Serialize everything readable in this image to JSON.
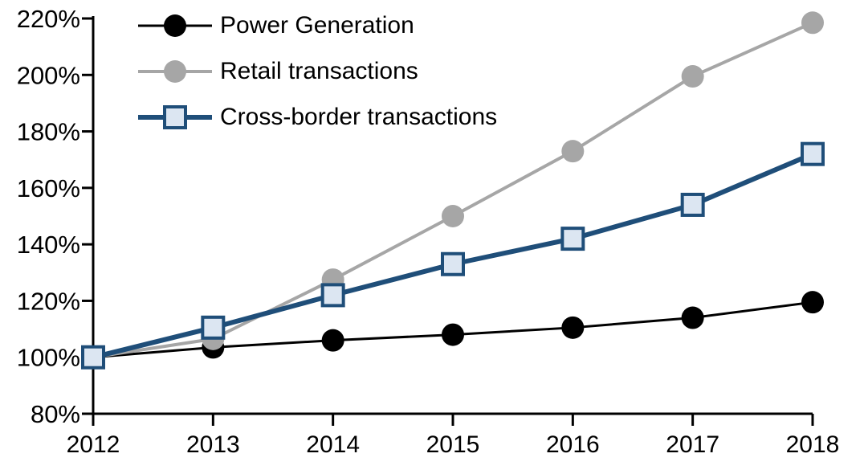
{
  "chart_data": {
    "type": "line",
    "title": "",
    "xlabel": "",
    "ylabel": "",
    "x_labels": [
      "2012",
      "2013",
      "2014",
      "2015",
      "2016",
      "2017",
      "2018"
    ],
    "series": [
      {
        "name": "Power Generation",
        "color": "#000000",
        "marker": "circle",
        "marker_fill": "#000000",
        "line_width": 3,
        "values": [
          100,
          103.5,
          106,
          108,
          110.5,
          114,
          119.5
        ]
      },
      {
        "name": "Retail transactions",
        "color": "#A6A6A6",
        "marker": "circle",
        "marker_fill": "#A6A6A6",
        "line_width": 4,
        "values": [
          100,
          106.5,
          127.5,
          150,
          173,
          199.5,
          218.5
        ]
      },
      {
        "name": "Cross-border transactions",
        "color": "#1F4E79",
        "marker": "square",
        "marker_fill": "#DCE6F2",
        "line_width": 6,
        "values": [
          100,
          110.5,
          122,
          133,
          142,
          154,
          172
        ]
      }
    ],
    "ylim": [
      80,
      220
    ],
    "ytick_step": 20,
    "ytick_suffix": "%",
    "axis_color": "#000000",
    "legend_position": "top-left",
    "grid": false
  }
}
